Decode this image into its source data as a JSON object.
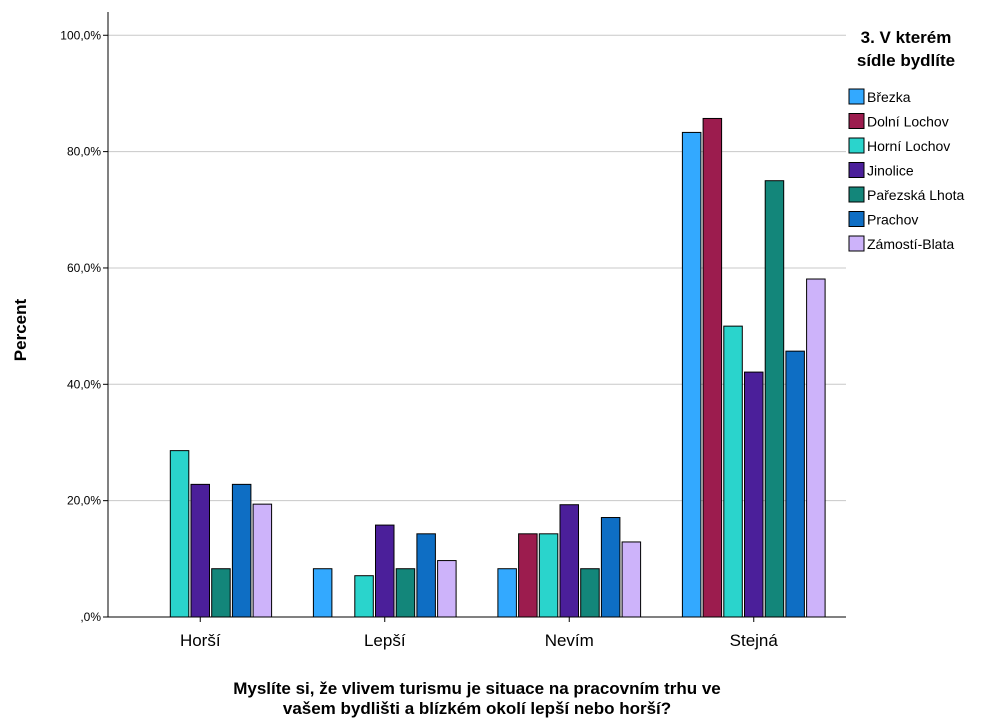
{
  "chart_data": {
    "type": "bar",
    "ylabel": "Percent",
    "xlabel_lines": [
      "Myslíte si, že vlivem turismu je situace na pracovním trhu ve",
      "vašem bydlišti a blízkém okolí lepší nebo horší?"
    ],
    "categories": [
      "Horší",
      "Lepší",
      "Nevím",
      "Stejná"
    ],
    "ylim": [
      0,
      104
    ],
    "yticks": [
      0,
      20,
      40,
      60,
      80,
      100
    ],
    "ytick_labels": [
      ",0%",
      "20,0%",
      "40,0%",
      "60,0%",
      "80,0%",
      "100,0%"
    ],
    "grid": true,
    "legend": {
      "title_lines": [
        "3. V kterém",
        "sídle bydlíte"
      ],
      "position": "right"
    },
    "series": [
      {
        "name": "Březka",
        "color": "#33a9ff",
        "values": [
          0,
          8.3,
          8.3,
          83.3
        ]
      },
      {
        "name": "Dolní Lochov",
        "color": "#9c1c4e",
        "values": [
          0,
          0,
          14.3,
          85.7
        ]
      },
      {
        "name": "Horní Lochov",
        "color": "#2ad4cc",
        "values": [
          28.6,
          7.1,
          14.3,
          50.0
        ]
      },
      {
        "name": "Jinolice",
        "color": "#4b1f9a",
        "values": [
          22.8,
          15.8,
          19.3,
          42.1
        ]
      },
      {
        "name": "Pařezská Lhota",
        "color": "#13867a",
        "values": [
          8.3,
          8.3,
          8.3,
          75.0
        ]
      },
      {
        "name": "Prachov",
        "color": "#0e6ec4",
        "values": [
          22.8,
          14.3,
          17.1,
          45.7
        ]
      },
      {
        "name": "Zámostí-Blata",
        "color": "#cdb3fa",
        "values": [
          19.4,
          9.7,
          12.9,
          58.1
        ]
      }
    ]
  }
}
